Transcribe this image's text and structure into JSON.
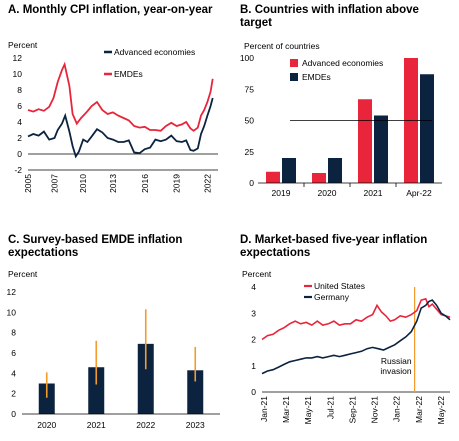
{
  "colors": {
    "red": "#e8253a",
    "navy": "#0c2340",
    "orange": "#f39c2d",
    "axis": "#000000"
  },
  "chart_data": [
    {
      "type": "line",
      "title": "A. Monthly CPI inflation, year-on-year",
      "ylabel": "Percent",
      "ylim": [
        -2,
        12
      ],
      "yticks": [
        -2,
        0,
        2,
        4,
        6,
        8,
        10,
        12
      ],
      "xlim": [
        2005,
        2022.9
      ],
      "xticks": [
        "2005",
        "2007",
        "2010",
        "2013",
        "2016",
        "2019",
        "2022"
      ],
      "xtick_values": [
        2005,
        2007.5,
        2010.2,
        2013,
        2016,
        2019,
        2021.9
      ],
      "series": [
        {
          "name": "Advanced economies",
          "color": "navy",
          "points": [
            [
              2005,
              2.2
            ],
            [
              2005.5,
              2.5
            ],
            [
              2006,
              2.3
            ],
            [
              2006.5,
              2.8
            ],
            [
              2007,
              1.8
            ],
            [
              2007.5,
              2.0
            ],
            [
              2007.8,
              3.0
            ],
            [
              2008.2,
              3.8
            ],
            [
              2008.5,
              4.8
            ],
            [
              2008.9,
              2.8
            ],
            [
              2009.2,
              1.0
            ],
            [
              2009.5,
              -0.3
            ],
            [
              2009.8,
              0.3
            ],
            [
              2010.2,
              1.8
            ],
            [
              2010.6,
              1.5
            ],
            [
              2011,
              2.2
            ],
            [
              2011.5,
              3.1
            ],
            [
              2012,
              2.7
            ],
            [
              2012.5,
              2.0
            ],
            [
              2013,
              1.8
            ],
            [
              2013.5,
              1.5
            ],
            [
              2014,
              1.5
            ],
            [
              2014.5,
              1.7
            ],
            [
              2015,
              0.2
            ],
            [
              2015.5,
              0.1
            ],
            [
              2016,
              0.6
            ],
            [
              2016.5,
              0.8
            ],
            [
              2017,
              1.8
            ],
            [
              2017.5,
              1.6
            ],
            [
              2018,
              1.8
            ],
            [
              2018.5,
              2.3
            ],
            [
              2019,
              1.6
            ],
            [
              2019.5,
              1.5
            ],
            [
              2019.9,
              1.7
            ],
            [
              2020.3,
              0.5
            ],
            [
              2020.6,
              0.4
            ],
            [
              2021,
              0.7
            ],
            [
              2021.3,
              2.5
            ],
            [
              2021.6,
              3.5
            ],
            [
              2021.9,
              4.8
            ],
            [
              2022.2,
              6.0
            ],
            [
              2022.4,
              7.0
            ]
          ]
        },
        {
          "name": "EMDEs",
          "color": "red",
          "points": [
            [
              2005,
              5.5
            ],
            [
              2005.5,
              5.3
            ],
            [
              2006,
              5.6
            ],
            [
              2006.5,
              5.4
            ],
            [
              2007,
              5.9
            ],
            [
              2007.4,
              7.0
            ],
            [
              2007.8,
              9.0
            ],
            [
              2008.2,
              10.5
            ],
            [
              2008.45,
              11.2
            ],
            [
              2008.9,
              8.5
            ],
            [
              2009.2,
              5.0
            ],
            [
              2009.6,
              3.8
            ],
            [
              2010,
              4.5
            ],
            [
              2010.5,
              5.2
            ],
            [
              2011,
              6.0
            ],
            [
              2011.5,
              6.5
            ],
            [
              2012,
              5.5
            ],
            [
              2012.5,
              5.0
            ],
            [
              2013,
              5.2
            ],
            [
              2013.5,
              4.8
            ],
            [
              2014,
              4.5
            ],
            [
              2014.5,
              4.2
            ],
            [
              2015,
              3.5
            ],
            [
              2015.5,
              3.3
            ],
            [
              2016,
              3.4
            ],
            [
              2016.5,
              3.0
            ],
            [
              2017,
              3.0
            ],
            [
              2017.5,
              2.9
            ],
            [
              2018,
              3.5
            ],
            [
              2018.5,
              3.9
            ],
            [
              2019,
              3.5
            ],
            [
              2019.5,
              3.7
            ],
            [
              2019.9,
              4.0
            ],
            [
              2020.3,
              3.2
            ],
            [
              2020.6,
              2.9
            ],
            [
              2021,
              3.3
            ],
            [
              2021.3,
              4.8
            ],
            [
              2021.6,
              5.5
            ],
            [
              2021.9,
              6.5
            ],
            [
              2022.2,
              7.8
            ],
            [
              2022.4,
              9.4
            ]
          ]
        }
      ]
    },
    {
      "type": "bar",
      "title": "B. Countries with inflation above target",
      "ylabel": "Percent of countries",
      "ylim": [
        0,
        100
      ],
      "yticks": [
        0,
        25,
        50,
        75,
        100
      ],
      "categories": [
        "2019",
        "2020",
        "2021",
        "Apr-22"
      ],
      "series": [
        {
          "name": "Advanced economies",
          "color": "red",
          "values": [
            9,
            8,
            67,
            100
          ]
        },
        {
          "name": "EMDEs",
          "color": "navy",
          "values": [
            20,
            20,
            54,
            87
          ]
        }
      ],
      "reference_line": 50
    },
    {
      "type": "bar",
      "title": "C. Survey-based EMDE inflation expectations",
      "ylabel": "Percent",
      "ylim": [
        0,
        12
      ],
      "yticks": [
        0,
        2,
        4,
        6,
        8,
        10,
        12
      ],
      "categories": [
        "2020",
        "2021",
        "2022",
        "2023"
      ],
      "values": [
        3.0,
        4.6,
        6.9,
        4.3
      ],
      "error_low": [
        1.6,
        2.9,
        4.4,
        3.2
      ],
      "error_high": [
        4.1,
        7.2,
        10.3,
        6.6
      ]
    },
    {
      "type": "line",
      "title": "D. Market-based five-year inflation expectations",
      "ylabel": "Percent",
      "ylim": [
        0,
        4
      ],
      "yticks": [
        0,
        1,
        2,
        3,
        4
      ],
      "xlim": [
        0,
        17
      ],
      "xticks": [
        "Jan-21",
        "Mar-21",
        "May-21",
        "Jul-21",
        "Sep-21",
        "Nov-21",
        "Jan-22",
        "Mar-22",
        "May-22"
      ],
      "annotation": {
        "text": [
          "Russian",
          "invasion"
        ],
        "x": 13.8
      },
      "series": [
        {
          "name": "United States",
          "color": "red",
          "points": [
            [
              0,
              2.0
            ],
            [
              0.5,
              2.15
            ],
            [
              1,
              2.2
            ],
            [
              1.5,
              2.35
            ],
            [
              2,
              2.45
            ],
            [
              2.5,
              2.6
            ],
            [
              3,
              2.7
            ],
            [
              3.5,
              2.6
            ],
            [
              4,
              2.65
            ],
            [
              4.5,
              2.55
            ],
            [
              5,
              2.7
            ],
            [
              5.5,
              2.55
            ],
            [
              6,
              2.6
            ],
            [
              6.5,
              2.7
            ],
            [
              7,
              2.55
            ],
            [
              7.5,
              2.6
            ],
            [
              8,
              2.6
            ],
            [
              8.5,
              2.75
            ],
            [
              9,
              2.7
            ],
            [
              9.5,
              2.85
            ],
            [
              10,
              2.95
            ],
            [
              10.4,
              3.3
            ],
            [
              10.8,
              3.05
            ],
            [
              11.2,
              2.9
            ],
            [
              11.6,
              2.7
            ],
            [
              12,
              2.75
            ],
            [
              12.5,
              2.9
            ],
            [
              13,
              2.85
            ],
            [
              13.5,
              2.95
            ],
            [
              14,
              3.1
            ],
            [
              14.4,
              3.5
            ],
            [
              14.8,
              3.55
            ],
            [
              15.1,
              3.25
            ],
            [
              15.4,
              3.35
            ],
            [
              15.8,
              3.15
            ],
            [
              16.2,
              2.95
            ],
            [
              16.6,
              2.9
            ],
            [
              17,
              2.85
            ]
          ]
        },
        {
          "name": "Germany",
          "color": "navy",
          "points": [
            [
              0,
              0.7
            ],
            [
              0.5,
              0.8
            ],
            [
              1,
              0.85
            ],
            [
              1.5,
              0.95
            ],
            [
              2,
              1.05
            ],
            [
              2.5,
              1.15
            ],
            [
              3,
              1.2
            ],
            [
              3.5,
              1.25
            ],
            [
              4,
              1.3
            ],
            [
              4.5,
              1.3
            ],
            [
              5,
              1.35
            ],
            [
              5.5,
              1.3
            ],
            [
              6,
              1.35
            ],
            [
              6.5,
              1.4
            ],
            [
              7,
              1.35
            ],
            [
              7.5,
              1.4
            ],
            [
              8,
              1.45
            ],
            [
              8.5,
              1.5
            ],
            [
              9,
              1.55
            ],
            [
              9.5,
              1.65
            ],
            [
              10,
              1.7
            ],
            [
              10.5,
              1.65
            ],
            [
              11,
              1.6
            ],
            [
              11.5,
              1.7
            ],
            [
              12,
              1.8
            ],
            [
              12.5,
              1.95
            ],
            [
              13,
              2.1
            ],
            [
              13.5,
              2.3
            ],
            [
              14,
              2.7
            ],
            [
              14.4,
              3.2
            ],
            [
              14.8,
              3.3
            ],
            [
              15.1,
              3.45
            ],
            [
              15.4,
              3.5
            ],
            [
              15.8,
              3.3
            ],
            [
              16.2,
              3.0
            ],
            [
              16.6,
              2.9
            ],
            [
              17,
              2.75
            ]
          ]
        }
      ]
    }
  ]
}
